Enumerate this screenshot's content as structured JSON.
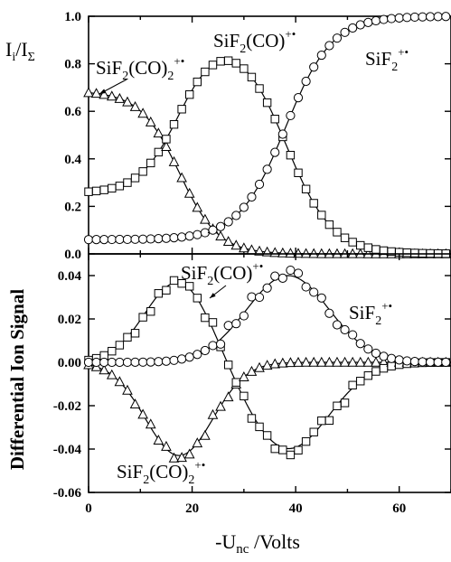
{
  "chart_data": [
    {
      "type": "scatter",
      "panel": "top",
      "ylabel": {
        "main": "I",
        "sub1": "i",
        "mid": "/I",
        "sub2": "Σ"
      },
      "xlim": [
        0,
        70
      ],
      "ylim": [
        0,
        1.0
      ],
      "yticks": [
        "0.0",
        "0.2",
        "0.4",
        "0.6",
        "0.8",
        "1.0"
      ],
      "grid": false,
      "series": [
        {
          "name": "SiF2(CO)2+•",
          "label": {
            "a": "SiF",
            "s1": "2",
            "b": "(CO)",
            "s2": "2",
            "sup": "+•"
          },
          "marker": "triangle",
          "model": {
            "kind": "fall",
            "start": 0.685,
            "mid": 17.5,
            "width": 3.8
          }
        },
        {
          "name": "SiF2(CO)+•",
          "label": {
            "a": "SiF",
            "s1": "2",
            "b": "(CO)",
            "s2": "",
            "sup": "+•"
          },
          "marker": "square",
          "model": {
            "kind": "peak",
            "base": 0.255,
            "rise_mid": 17.5,
            "rise_w": 3.8,
            "fall_mid": 38,
            "fall_w": 4.5,
            "start_level": 0.685
          }
        },
        {
          "name": "SiF2+•",
          "label": {
            "a": "SiF",
            "s1": "2",
            "b": "",
            "s2": "",
            "sup": "+•"
          },
          "marker": "circle",
          "model": {
            "kind": "rise",
            "base": 0.06,
            "mid": 38,
            "width": 4.5
          }
        }
      ]
    },
    {
      "type": "scatter",
      "panel": "bottom",
      "ylabel": "Differential Ion Signal",
      "xlabel": {
        "main": "-U",
        "sub": "nc",
        "rest": " /Volts"
      },
      "xlim": [
        0,
        70
      ],
      "ylim": [
        -0.06,
        0.05
      ],
      "xticks": [
        "0",
        "20",
        "40",
        "60"
      ],
      "yticks": [
        "-0.06",
        "-0.04",
        "-0.02",
        "0.00",
        "0.02",
        "0.04"
      ],
      "grid": false,
      "series": [
        {
          "name": "SiF2(CO)+•",
          "label": {
            "a": "SiF",
            "s1": "2",
            "b": "(CO)",
            "s2": "",
            "sup": "+•"
          },
          "marker": "square"
        },
        {
          "name": "SiF2+•",
          "label": {
            "a": "SiF",
            "s1": "2",
            "b": "",
            "s2": "",
            "sup": "+•"
          },
          "marker": "circle"
        },
        {
          "name": "SiF2(CO)2+•",
          "label": {
            "a": "SiF",
            "s1": "2",
            "b": "(CO)",
            "s2": "2",
            "sup": "+•"
          },
          "marker": "triangle"
        }
      ],
      "curves": {
        "sif2co2": {
          "amp": -0.043,
          "center": 17.5,
          "sigma": 6.5
        },
        "sif2co_pos": {
          "amp": 0.038,
          "center": 17.5,
          "sigma": 6.5
        },
        "sif2co_neg": {
          "amp": -0.04,
          "center": 38.5,
          "sigma": 8.0
        },
        "sif2": {
          "amp": 0.04,
          "center": 38.5,
          "sigma": 8.0
        }
      }
    }
  ]
}
